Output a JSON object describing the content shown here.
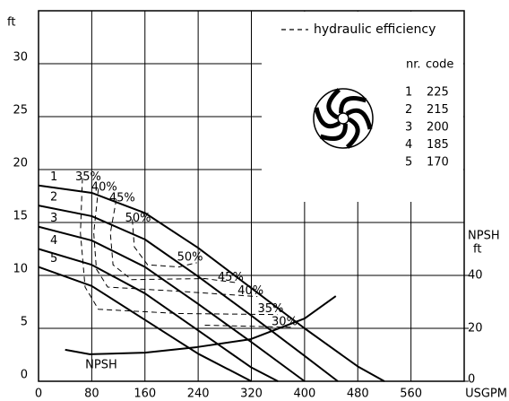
{
  "chart_data": {
    "type": "line",
    "y_label": "ft",
    "x_label": "USGPM",
    "y2_label": [
      "NPSH",
      "ft"
    ],
    "xlim": [
      0,
      640
    ],
    "xticks": [
      0,
      80,
      160,
      240,
      320,
      400,
      480,
      560
    ],
    "ylim": [
      0,
      35
    ],
    "yticks": [
      0,
      5,
      10,
      15,
      20,
      25,
      30
    ],
    "y2lim": [
      0,
      140
    ],
    "y2ticks": [
      0,
      20,
      40
    ],
    "grid": true,
    "series": [
      {
        "name": "1",
        "color": "#000000",
        "x": [
          0,
          80,
          160,
          240,
          320,
          400,
          480,
          520
        ],
        "values": [
          18.5,
          17.8,
          15.9,
          12.6,
          8.8,
          5.0,
          1.4,
          0
        ]
      },
      {
        "name": "2",
        "color": "#000000",
        "x": [
          0,
          80,
          160,
          240,
          320,
          400,
          450
        ],
        "values": [
          16.6,
          15.6,
          13.4,
          9.9,
          6.2,
          2.4,
          0
        ]
      },
      {
        "name": "3",
        "color": "#000000",
        "x": [
          0,
          80,
          160,
          240,
          320,
          400
        ],
        "values": [
          14.6,
          13.3,
          10.8,
          7.3,
          3.7,
          0
        ]
      },
      {
        "name": "4",
        "color": "#000000",
        "x": [
          0,
          80,
          160,
          240,
          320,
          360
        ],
        "values": [
          12.5,
          11.0,
          8.3,
          4.8,
          1.3,
          0
        ]
      },
      {
        "name": "5",
        "color": "#000000",
        "x": [
          0,
          80,
          160,
          240,
          320
        ],
        "values": [
          10.8,
          9.0,
          5.8,
          2.6,
          0
        ]
      },
      {
        "name": "NPSH",
        "color": "#000000",
        "axis": "y2",
        "x": [
          40,
          77,
          160,
          238,
          319,
          400,
          447
        ],
        "values": [
          11.9,
          10.2,
          10.8,
          12.9,
          15.9,
          23.7,
          32.2
        ]
      }
    ],
    "efficiency": {
      "label": "hydraulic efficiency",
      "curves": [
        {
          "label": "35%",
          "x": [
            66,
            63,
            70,
            90,
            211,
            359
          ],
          "values": [
            19.2,
            14,
            8.9,
            6.8,
            6.4,
            6.3
          ]
        },
        {
          "label": "40%",
          "x": [
            90,
            83,
            87,
            104,
            211,
            329
          ],
          "values": [
            18.2,
            14,
            10.6,
            8.9,
            8.5,
            8.0
          ]
        },
        {
          "label": "45%",
          "x": [
            117,
            108,
            112,
            140,
            250,
            299
          ],
          "values": [
            17.2,
            14,
            11,
            9.6,
            9.7,
            9.3
          ]
        },
        {
          "label": "50%",
          "x": [
            141,
            144,
            164,
            211,
            238
          ],
          "values": [
            15.3,
            12.7,
            11,
            10.8,
            11.2
          ]
        },
        {
          "label": "30%",
          "x": [
            250,
            380
          ],
          "values": [
            5.3,
            5.1
          ]
        }
      ]
    },
    "impellers": {
      "headers": [
        "nr.",
        "code"
      ],
      "rows": [
        [
          1,
          225
        ],
        [
          2,
          215
        ],
        [
          3,
          200
        ],
        [
          4,
          185
        ],
        [
          5,
          170
        ]
      ]
    }
  }
}
